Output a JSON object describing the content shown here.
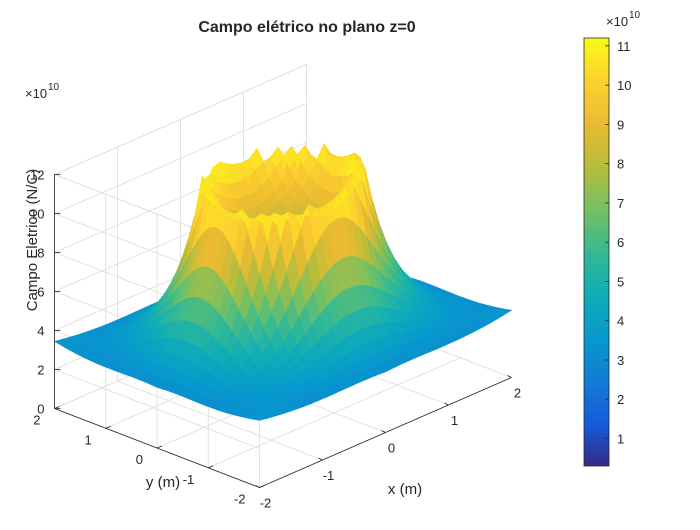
{
  "chart_data": {
    "type": "surface",
    "title": "Campo elétrico no plano z=0",
    "xlabel": "x (m)",
    "ylabel": "y (m)",
    "zlabel": "Campo Eletrico (N/C)",
    "z_exponent_label": "×10",
    "z_exponent_power": "10",
    "xlim": [
      -2,
      2
    ],
    "ylim": [
      -2,
      2
    ],
    "zlim": [
      0,
      12
    ],
    "x_ticks": [
      "-2",
      "-1",
      "0",
      "1",
      "2"
    ],
    "y_ticks": [
      "-2",
      "-1",
      "0",
      "1",
      "2"
    ],
    "z_ticks": [
      "0",
      "2",
      "4",
      "6",
      "8",
      "10",
      "12"
    ],
    "colorbar": {
      "exponent_label": "×10",
      "exponent_power": "10",
      "ticks": [
        "1",
        "2",
        "3",
        "4",
        "5",
        "6",
        "7",
        "8",
        "9",
        "10",
        "11"
      ],
      "range": [
        0.3,
        11.2
      ],
      "colormap": "parula"
    },
    "surface": {
      "ring_radius": 1.0,
      "peak_value": 11.2,
      "corner_value_near": 2.5,
      "corner_value_side": 2.3,
      "center_value": 7.8
    },
    "grid": true
  }
}
